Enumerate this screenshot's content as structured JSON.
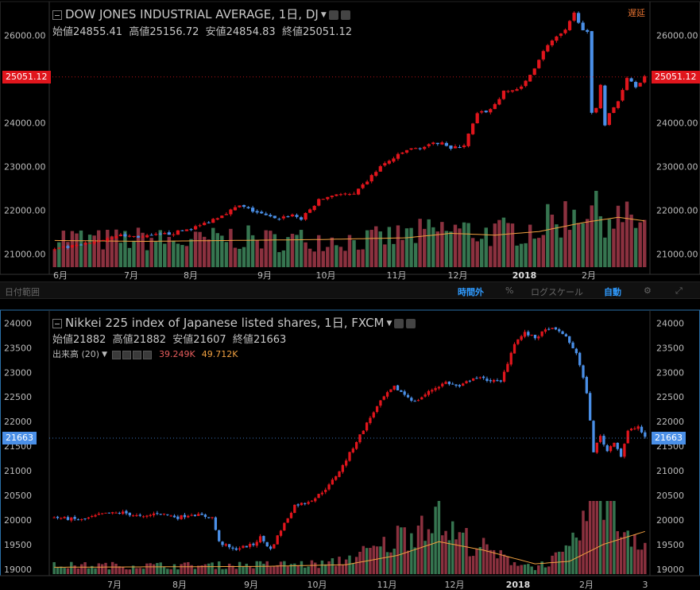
{
  "panels": [
    {
      "title": "DOW JONES INDUSTRIAL AVERAGE, 1日, DJ",
      "ohlc": {
        "open_label": "始値",
        "open": "24855.41",
        "high_label": "高値",
        "high": "25156.72",
        "low_label": "安値",
        "low": "24854.83",
        "close_label": "終値",
        "close": "25051.12"
      },
      "delay_label": "遅延",
      "last_price": "25051.12",
      "last_price_color": "#e0151c"
    },
    {
      "title": "Nikkei 225 index of Japanese listed shares, 1日, FXCM",
      "ohlc": {
        "open_label": "始値",
        "open": "21882",
        "high_label": "高値",
        "high": "21882",
        "low_label": "安値",
        "low": "21607",
        "close_label": "終値",
        "close": "21663"
      },
      "volume_label": "出来高 (20)",
      "volume_value": "39.249K",
      "volume_ma_value": "49.712K",
      "last_price": "21663",
      "last_price_color": "#4a8fe7"
    }
  ],
  "toolbar": {
    "date_range": "日付範囲",
    "after_hours": "時間外",
    "percent": "%",
    "log_scale": "ログスケール",
    "auto": "自動",
    "gear_icon": "gear-icon",
    "fullscreen_icon": "fullscreen-icon"
  },
  "chart_data": [
    {
      "type": "candlestick",
      "title": "DOW JONES INDUSTRIAL AVERAGE, 1日, DJ",
      "x_ticks": [
        "6月",
        "7月",
        "8月",
        "9月",
        "10月",
        "11月",
        "12月",
        "2018",
        "2月"
      ],
      "y_ticks": [
        21000,
        22000,
        23000,
        24000,
        26000
      ],
      "ylim": [
        20700,
        26700
      ],
      "last_value": 25051.12,
      "colors": {
        "up": "#e0151c",
        "down": "#4a8fe7",
        "volume_up": "#a33a4a",
        "volume_down": "#3f8a5e",
        "volume_ma": "#f0a040"
      },
      "path": [
        [
          0,
          21100
        ],
        [
          8,
          21240
        ],
        [
          14,
          21430
        ],
        [
          20,
          21390
        ],
        [
          27,
          21480
        ],
        [
          33,
          21650
        ],
        [
          38,
          21900
        ],
        [
          42,
          22100
        ],
        [
          46,
          21950
        ],
        [
          50,
          21800
        ],
        [
          54,
          21900
        ],
        [
          56,
          21800
        ],
        [
          60,
          22230
        ],
        [
          64,
          22380
        ],
        [
          68,
          22350
        ],
        [
          74,
          23000
        ],
        [
          80,
          23380
        ],
        [
          84,
          23450
        ],
        [
          88,
          23580
        ],
        [
          90,
          23400
        ],
        [
          93,
          23500
        ],
        [
          96,
          24200
        ],
        [
          99,
          24300
        ],
        [
          102,
          24700
        ],
        [
          106,
          24800
        ],
        [
          108,
          25100
        ],
        [
          112,
          25800
        ],
        [
          116,
          26100
        ],
        [
          118,
          26500
        ],
        [
          120,
          26150
        ],
        [
          121,
          26050
        ],
        [
          122,
          24200
        ],
        [
          123,
          24350
        ],
        [
          124,
          24900
        ],
        [
          125,
          23950
        ],
        [
          126,
          24200
        ],
        [
          128,
          24500
        ],
        [
          130,
          25050
        ],
        [
          132,
          24850
        ],
        [
          134,
          25050
        ]
      ],
      "volume_path": [
        [
          0,
          35
        ],
        [
          10,
          30
        ],
        [
          20,
          32
        ],
        [
          30,
          28
        ],
        [
          40,
          34
        ],
        [
          50,
          30
        ],
        [
          60,
          32
        ],
        [
          70,
          30
        ],
        [
          80,
          36
        ],
        [
          90,
          42
        ],
        [
          100,
          38
        ],
        [
          110,
          45
        ],
        [
          115,
          55
        ],
        [
          120,
          70
        ],
        [
          125,
          60
        ],
        [
          130,
          52
        ],
        [
          134,
          50
        ]
      ],
      "volume_ma_path": [
        [
          0,
          30
        ],
        [
          20,
          29
        ],
        [
          40,
          30
        ],
        [
          60,
          31
        ],
        [
          80,
          33
        ],
        [
          90,
          38
        ],
        [
          100,
          36
        ],
        [
          110,
          40
        ],
        [
          120,
          50
        ],
        [
          128,
          56
        ],
        [
          134,
          52
        ]
      ]
    },
    {
      "type": "candlestick",
      "title": "Nikkei 225 index of Japanese listed shares, 1日, FXCM",
      "x_ticks": [
        "7月",
        "8月",
        "9月",
        "10月",
        "11月",
        "12月",
        "2018",
        "2月",
        "3"
      ],
      "y_ticks": [
        19000,
        19500,
        20000,
        20500,
        21000,
        21500,
        22000,
        22500,
        23000,
        23500,
        24000
      ],
      "ylim": [
        18900,
        24200
      ],
      "last_value": 21663,
      "colors": {
        "up": "#e0151c",
        "down": "#4a8fe7",
        "volume_up": "#a33a4a",
        "volume_down": "#3f8a5e",
        "volume_ma": "#f0a040"
      },
      "path": [
        [
          0,
          20050
        ],
        [
          8,
          20000
        ],
        [
          14,
          20120
        ],
        [
          20,
          20150
        ],
        [
          26,
          20050
        ],
        [
          30,
          20150
        ],
        [
          36,
          20050
        ],
        [
          40,
          20120
        ],
        [
          46,
          20050
        ],
        [
          48,
          19550
        ],
        [
          52,
          19400
        ],
        [
          58,
          19500
        ],
        [
          60,
          19650
        ],
        [
          63,
          19400
        ],
        [
          66,
          19800
        ],
        [
          70,
          20300
        ],
        [
          73,
          20350
        ],
        [
          76,
          20450
        ],
        [
          80,
          20700
        ],
        [
          84,
          21100
        ],
        [
          88,
          21600
        ],
        [
          93,
          22200
        ],
        [
          96,
          22500
        ],
        [
          99,
          22700
        ],
        [
          102,
          22550
        ],
        [
          105,
          22400
        ],
        [
          110,
          22650
        ],
        [
          114,
          22800
        ],
        [
          118,
          22700
        ],
        [
          122,
          22900
        ],
        [
          126,
          22850
        ],
        [
          130,
          22800
        ],
        [
          134,
          23600
        ],
        [
          137,
          23800
        ],
        [
          140,
          23700
        ],
        [
          144,
          23900
        ],
        [
          148,
          23800
        ],
        [
          152,
          23400
        ],
        [
          155,
          22600
        ],
        [
          157,
          21400
        ],
        [
          159,
          21700
        ],
        [
          161,
          21400
        ],
        [
          163,
          21600
        ],
        [
          165,
          21300
        ],
        [
          167,
          21800
        ],
        [
          170,
          21900
        ],
        [
          172,
          21663
        ]
      ],
      "volume_path": [
        [
          0,
          10
        ],
        [
          40,
          10
        ],
        [
          80,
          12
        ],
        [
          95,
          30
        ],
        [
          105,
          55
        ],
        [
          110,
          75
        ],
        [
          115,
          50
        ],
        [
          130,
          20
        ],
        [
          140,
          8
        ],
        [
          150,
          25
        ],
        [
          155,
          70
        ],
        [
          160,
          110
        ],
        [
          165,
          55
        ],
        [
          172,
          40
        ]
      ],
      "volume_ma_path": [
        [
          0,
          8
        ],
        [
          60,
          9
        ],
        [
          85,
          11
        ],
        [
          100,
          22
        ],
        [
          112,
          38
        ],
        [
          125,
          28
        ],
        [
          140,
          12
        ],
        [
          150,
          15
        ],
        [
          160,
          35
        ],
        [
          172,
          50
        ]
      ]
    }
  ]
}
